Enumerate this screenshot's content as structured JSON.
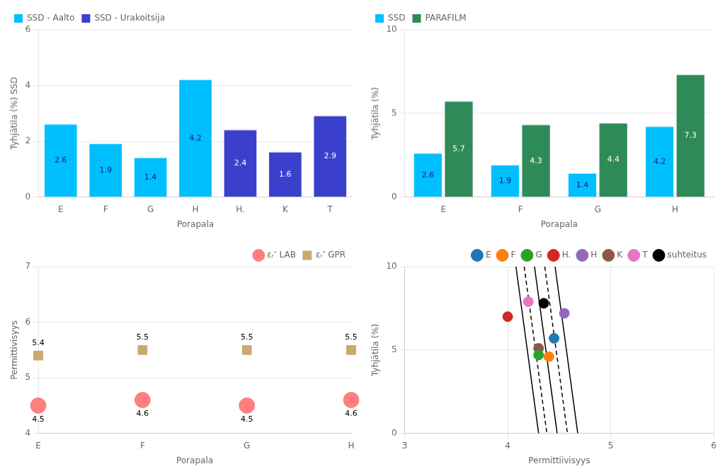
{
  "chart_data": [
    {
      "type": "bar",
      "categories": [
        "E",
        "F",
        "G",
        "H",
        "H.",
        "K",
        "T"
      ],
      "series": [
        {
          "name": "SSD - Aalto",
          "color": "#00BFFF",
          "values": [
            2.6,
            1.9,
            1.4,
            4.2,
            null,
            null,
            null
          ]
        },
        {
          "name": "SSD - Urakoitsija",
          "color": "#3A3FCC",
          "values": [
            null,
            null,
            null,
            null,
            2.4,
            1.6,
            2.9
          ]
        }
      ],
      "x_label": "Porapala",
      "y_label": "Tyhjätila (%) SSD",
      "ylim": [
        0,
        6
      ],
      "yticks": [
        0,
        2,
        4,
        6
      ],
      "grid": "y",
      "legend": "upper left",
      "data_labels": true
    },
    {
      "type": "bar",
      "categories": [
        "E",
        "F",
        "G",
        "H"
      ],
      "series": [
        {
          "name": "SSD",
          "color": "#00BFFF",
          "values": [
            2.6,
            1.9,
            1.4,
            4.2
          ]
        },
        {
          "name": "PARAFILM",
          "color": "#2E8B57",
          "values": [
            5.7,
            4.3,
            4.4,
            7.3
          ]
        }
      ],
      "x_label": "Porapala",
      "y_label": "Tyhjätila (%)",
      "ylim": [
        0,
        10
      ],
      "yticks": [
        0,
        5,
        10
      ],
      "grid": "y",
      "legend": "upper left",
      "data_labels": true
    },
    {
      "type": "scatter",
      "categories": [
        "E",
        "F",
        "G",
        "H"
      ],
      "series": [
        {
          "name": "εᵣ’ LAB",
          "color": "#FF7F7F",
          "marker": "circle",
          "values": [
            4.5,
            4.6,
            4.5,
            4.6
          ]
        },
        {
          "name": "εᵣ’ GPR",
          "color": "#C8A96E",
          "marker": "square",
          "values": [
            5.4,
            5.5,
            5.5,
            5.5
          ]
        }
      ],
      "x_label": "Porapala",
      "y_label": "Permittivisyys",
      "ylim": [
        4,
        7
      ],
      "yticks": [
        4,
        5,
        6,
        7
      ],
      "grid": "y",
      "legend": "upper right",
      "data_labels": true
    },
    {
      "type": "scatter",
      "series": [
        {
          "name": "E",
          "color": "#1F77B4",
          "marker": "circle",
          "x": [
            4.45
          ],
          "values": [
            5.7
          ]
        },
        {
          "name": "F",
          "color": "#FF7F0E",
          "marker": "circle",
          "x": [
            4.4
          ],
          "values": [
            4.6
          ]
        },
        {
          "name": "G",
          "color": "#2CA02C",
          "marker": "circle",
          "x": [
            4.3
          ],
          "values": [
            4.7
          ]
        },
        {
          "name": "H.",
          "color": "#D62728",
          "marker": "circle",
          "x": [
            4.0
          ],
          "values": [
            7.0
          ]
        },
        {
          "name": "H",
          "color": "#9467BD",
          "marker": "circle",
          "x": [
            4.55
          ],
          "values": [
            7.2
          ]
        },
        {
          "name": "K",
          "color": "#8C564B",
          "marker": "circle",
          "x": [
            4.3
          ],
          "values": [
            5.1
          ]
        },
        {
          "name": "T",
          "color": "#E377C2",
          "marker": "circle",
          "x": [
            4.2
          ],
          "values": [
            7.9
          ]
        },
        {
          "name": "suhteitus",
          "color": "#000000",
          "marker": "circle",
          "x": [
            4.35
          ],
          "values": [
            7.8
          ]
        },
        {
          "type": "line",
          "color": "#000000",
          "line_style": "solid",
          "x": [
            4.08,
            4.3
          ],
          "values": [
            10,
            0
          ]
        },
        {
          "type": "line",
          "color": "#000000",
          "line_style": "dashed",
          "x": [
            4.16,
            4.38
          ],
          "values": [
            10,
            0
          ]
        },
        {
          "type": "line",
          "color": "#000000",
          "line_style": "solid",
          "x": [
            4.26,
            4.48
          ],
          "values": [
            10,
            0
          ]
        },
        {
          "type": "line",
          "color": "#000000",
          "line_style": "dashed",
          "x": [
            4.36,
            4.58
          ],
          "values": [
            10,
            0
          ]
        },
        {
          "type": "line",
          "color": "#000000",
          "line_style": "solid",
          "x": [
            4.46,
            4.68
          ],
          "values": [
            10,
            0
          ]
        }
      ],
      "x_label": "Permittiivisyys",
      "y_label": "Tyhjätila (%)",
      "xlim": [
        3,
        6
      ],
      "xticks": [
        3,
        4,
        5,
        6
      ],
      "ylim": [
        0,
        10
      ],
      "yticks": [
        0,
        5,
        10
      ],
      "grid": true,
      "legend": "upper right"
    }
  ]
}
